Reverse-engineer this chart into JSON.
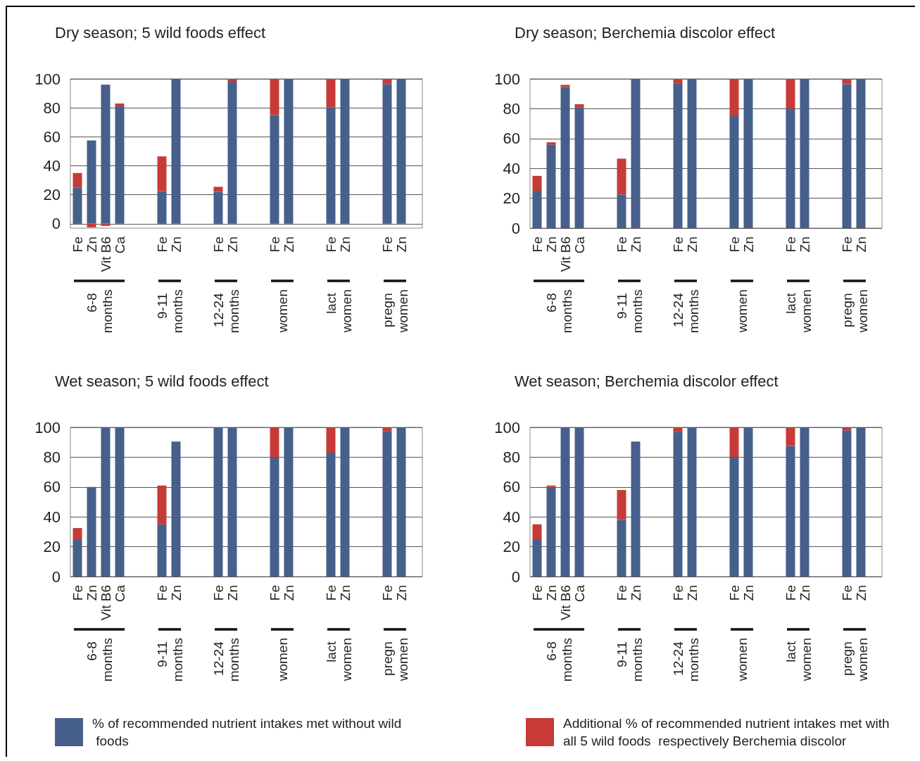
{
  "chart_data": [
    {
      "type": "bar",
      "title": "Dry season; 5 wild foods effect",
      "stacked": true,
      "grid": "y",
      "legend": "bottom",
      "categories": [
        "Fe",
        "Zn",
        "Vit B6",
        "Ca",
        null,
        null,
        "Fe",
        "Zn",
        null,
        null,
        "Fe",
        "Zn",
        null,
        null,
        "Fe",
        "Zn",
        null,
        null,
        "Fe",
        "Zn",
        null,
        null,
        "Fe",
        "Zn",
        null
      ],
      "ylim": [
        -3,
        100
      ],
      "yticks": [
        0,
        20,
        40,
        60,
        80,
        100
      ],
      "annotations": [
        "6-8 months",
        "9-11 months",
        "12-24 months",
        "women",
        "lact women",
        "pregn women"
      ],
      "series": [
        {
          "name": "% of recommended nutrient intakes met without wild foods",
          "color": "#475f8b",
          "values": [
            25,
            57.5,
            96,
            81,
            null,
            null,
            22.5,
            100,
            null,
            null,
            22,
            98,
            null,
            null,
            75,
            100,
            null,
            null,
            80.5,
            100,
            null,
            null,
            96.5,
            100,
            null
          ]
        },
        {
          "name": "Additional % of recommended nutrient intakes met with all 5 wild foods  respectively Berchemia discolor",
          "color": "#c73a37",
          "values": [
            10,
            -2.5,
            -1.5,
            2,
            null,
            null,
            24,
            0,
            null,
            null,
            3.5,
            2,
            null,
            null,
            25,
            0,
            null,
            null,
            19.5,
            0,
            null,
            null,
            3.5,
            0,
            null
          ]
        }
      ]
    },
    {
      "type": "bar",
      "title": "Dry season; Berchemia discolor effect",
      "stacked": true,
      "grid": "y",
      "categories": [
        "Fe",
        "Zn",
        "Vit B6",
        "Ca",
        null,
        null,
        "Fe",
        "Zn",
        null,
        null,
        "Fe",
        "Zn",
        null,
        null,
        "Fe",
        "Zn",
        null,
        null,
        "Fe",
        "Zn",
        null,
        null,
        "Fe",
        "Zn",
        null
      ],
      "ylim": [
        0,
        100
      ],
      "yticks": [
        0,
        20,
        40,
        60,
        80,
        100
      ],
      "annotations": [
        "6-8 months",
        "9-11 months",
        "12-24 months",
        "women",
        "lact women",
        "pregn women"
      ],
      "series": [
        {
          "color": "#475f8b",
          "values": [
            25,
            56,
            94.5,
            81,
            null,
            null,
            22.5,
            100,
            null,
            null,
            97,
            100,
            null,
            null,
            75,
            100,
            null,
            null,
            80,
            100,
            null,
            null,
            96.5,
            100,
            null
          ]
        },
        {
          "color": "#c73a37",
          "values": [
            10,
            1.5,
            1.5,
            2,
            null,
            null,
            24,
            0,
            null,
            null,
            3,
            0,
            null,
            null,
            25,
            0,
            null,
            null,
            20,
            0,
            null,
            null,
            3.5,
            0,
            null
          ]
        }
      ]
    },
    {
      "type": "bar",
      "title": "Wet season; 5 wild foods effect",
      "stacked": true,
      "grid": "y",
      "categories": [
        "Fe",
        "Zn",
        "Vit B6",
        "Ca",
        null,
        null,
        "Fe",
        "Zn",
        null,
        null,
        "Fe",
        "Zn",
        null,
        null,
        "Fe",
        "Zn",
        null,
        null,
        "Fe",
        "Zn",
        null,
        null,
        "Fe",
        "Zn",
        null
      ],
      "ylim": [
        0,
        100
      ],
      "yticks": [
        0,
        20,
        40,
        60,
        80,
        100
      ],
      "annotations": [
        "6-8 months",
        "9-11 months",
        "12-24 months",
        "women",
        "lact women",
        "pregn women"
      ],
      "series": [
        {
          "color": "#475f8b",
          "values": [
            25,
            60,
            100,
            100,
            null,
            null,
            35,
            90.5,
            null,
            null,
            100,
            100,
            null,
            null,
            80,
            100,
            null,
            null,
            83,
            100,
            null,
            null,
            97.5,
            100,
            null
          ]
        },
        {
          "color": "#c73a37",
          "values": [
            7.5,
            0,
            0,
            0,
            null,
            null,
            26,
            0,
            null,
            null,
            0,
            0,
            null,
            null,
            20,
            0,
            null,
            null,
            17,
            0,
            null,
            null,
            2.5,
            0,
            null
          ]
        }
      ]
    },
    {
      "type": "bar",
      "title": "Wet season; Berchemia discolor effect",
      "stacked": true,
      "grid": "y",
      "categories": [
        "Fe",
        "Zn",
        "Vit B6",
        "Ca",
        null,
        null,
        "Fe",
        "Zn",
        null,
        null,
        "Fe",
        "Zn",
        null,
        null,
        "Fe",
        "Zn",
        null,
        null,
        "Fe",
        "Zn",
        null,
        null,
        "Fe",
        "Zn",
        null
      ],
      "ylim": [
        0,
        100
      ],
      "yticks": [
        0,
        20,
        40,
        60,
        80,
        100
      ],
      "annotations": [
        "6-8 months",
        "9-11 months",
        "12-24 months",
        "women",
        "lact women",
        "pregn women"
      ],
      "series": [
        {
          "color": "#475f8b",
          "values": [
            25,
            60,
            100,
            100,
            null,
            null,
            38,
            90.5,
            null,
            null,
            97,
            100,
            null,
            null,
            80,
            100,
            null,
            null,
            87.5,
            100,
            null,
            null,
            98,
            100,
            null
          ]
        },
        {
          "color": "#c73a37",
          "values": [
            10,
            1,
            0,
            0,
            null,
            null,
            20,
            0,
            null,
            null,
            3,
            0,
            null,
            null,
            20,
            0,
            null,
            null,
            12.5,
            0,
            null,
            null,
            2,
            0,
            null
          ]
        }
      ]
    }
  ]
}
